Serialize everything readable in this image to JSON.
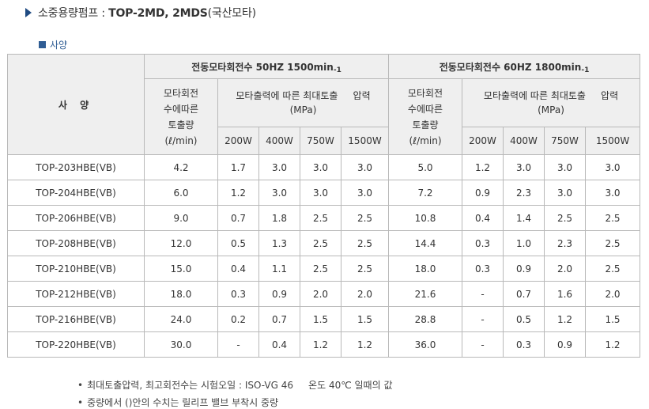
{
  "title": {
    "prefix": "소중용량펌프 : ",
    "bold": "TOP-2MD, 2MDS",
    "suffix": "(국산모타)"
  },
  "section_label": "사양",
  "table": {
    "spec_label": "사 양",
    "groups": [
      {
        "label": "전동모타회전수 50HZ 1500min",
        "sub": "-1"
      },
      {
        "label": "전동모타회전수 60HZ 1800min",
        "sub": "-1"
      }
    ],
    "flow_head_lines": [
      "모타회전",
      "수에따른",
      "토출량",
      "(ℓ/min)"
    ],
    "pressure_head_line1": "모타출력에 따른 최대토출     압력",
    "pressure_head_line2": "(MPa)",
    "watts": [
      "200W",
      "400W",
      "750W",
      "1500W"
    ],
    "rows": [
      {
        "model": "TOP-203HBE(VB)",
        "f50": "4.2",
        "p50": [
          "1.7",
          "3.0",
          "3.0",
          "3.0"
        ],
        "f60": "5.0",
        "p60": [
          "1.2",
          "3.0",
          "3.0",
          "3.0"
        ]
      },
      {
        "model": "TOP-204HBE(VB)",
        "f50": "6.0",
        "p50": [
          "1.2",
          "3.0",
          "3.0",
          "3.0"
        ],
        "f60": "7.2",
        "p60": [
          "0.9",
          "2.3",
          "3.0",
          "3.0"
        ]
      },
      {
        "model": "TOP-206HBE(VB)",
        "f50": "9.0",
        "p50": [
          "0.7",
          "1.8",
          "2.5",
          "2.5"
        ],
        "f60": "10.8",
        "p60": [
          "0.4",
          "1.4",
          "2.5",
          "2.5"
        ]
      },
      {
        "model": "TOP-208HBE(VB)",
        "f50": "12.0",
        "p50": [
          "0.5",
          "1.3",
          "2.5",
          "2.5"
        ],
        "f60": "14.4",
        "p60": [
          "0.3",
          "1.0",
          "2.3",
          "2.5"
        ]
      },
      {
        "model": "TOP-210HBE(VB)",
        "f50": "15.0",
        "p50": [
          "0.4",
          "1.1",
          "2.5",
          "2.5"
        ],
        "f60": "18.0",
        "p60": [
          "0.3",
          "0.9",
          "2.0",
          "2.5"
        ]
      },
      {
        "model": "TOP-212HBE(VB)",
        "f50": "18.0",
        "p50": [
          "0.3",
          "0.9",
          "2.0",
          "2.0"
        ],
        "f60": "21.6",
        "p60": [
          "-",
          "0.7",
          "1.6",
          "2.0"
        ]
      },
      {
        "model": "TOP-216HBE(VB)",
        "f50": "24.0",
        "p50": [
          "0.2",
          "0.7",
          "1.5",
          "1.5"
        ],
        "f60": "28.8",
        "p60": [
          "-",
          "0.5",
          "1.2",
          "1.5"
        ]
      },
      {
        "model": "TOP-220HBE(VB)",
        "f50": "30.0",
        "p50": [
          "-",
          "0.4",
          "1.2",
          "1.2"
        ],
        "f60": "36.0",
        "p60": [
          "-",
          "0.3",
          "0.9",
          "1.2"
        ]
      }
    ]
  },
  "notes": [
    "최대토출압력, 최고회전수는 시험오일 : ISO-VG 46     온도 40℃ 일때의 값",
    "중량에서 ()안의 수치는 릴리프 밸브 부착시 중량"
  ],
  "colors": {
    "title_arrow": "#1f4b82",
    "section_accent": "#2f5d94",
    "header_bg": "#efefef",
    "border": "#b9b9b9"
  }
}
